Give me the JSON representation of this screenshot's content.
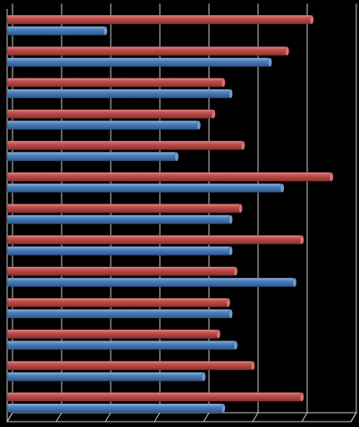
{
  "chart_data": {
    "type": "bar",
    "orientation": "horizontal",
    "style": "3d-cylinder",
    "title": "",
    "xlabel": "",
    "ylabel": "",
    "categories": [
      "",
      "",
      "",
      "",
      "",
      "",
      "",
      "",
      "",
      "",
      "",
      "",
      ""
    ],
    "series": [
      {
        "color": "#c0504d",
        "values": [
          6.2,
          5.7,
          4.4,
          4.2,
          4.8,
          6.6,
          4.75,
          6.0,
          4.65,
          4.5,
          4.3,
          5.0,
          6.0
        ]
      },
      {
        "color": "#4f81bd",
        "values": [
          2.0,
          5.35,
          4.55,
          3.9,
          3.45,
          5.6,
          4.55,
          4.55,
          5.85,
          4.55,
          4.65,
          4.0,
          4.4
        ]
      }
    ],
    "xlim": [
      0,
      7
    ],
    "grid": true,
    "legend": "none",
    "colors": {
      "background": "#000000",
      "grid": "#c8c8c8"
    }
  }
}
